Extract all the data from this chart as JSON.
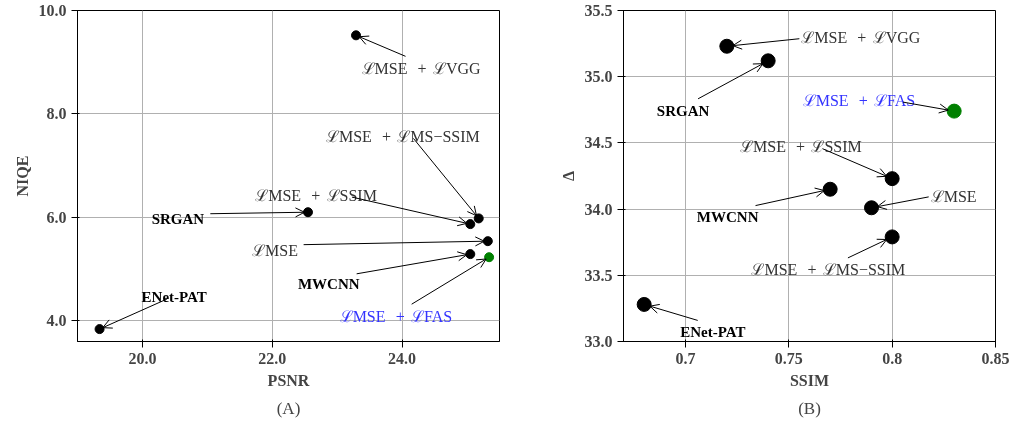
{
  "chart_data": [
    {
      "type": "scatter",
      "title": "(A)",
      "xlabel": "PSNR",
      "ylabel": "NIQE",
      "series": [
        {
          "color": "#000000",
          "x": [
            23.29,
            22.55,
            25.05,
            25.18,
            25.32,
            25.05,
            19.34
          ],
          "values": [
            9.52,
            6.1,
            5.87,
            5.98,
            5.54,
            5.29,
            3.84
          ]
        },
        {
          "color": "#008000",
          "x": [
            25.34
          ],
          "values": [
            5.23
          ]
        }
      ],
      "annotations": [
        {
          "text": "ℒMSE + ℒVGG",
          "x": 23.29,
          "y": 9.52
        },
        {
          "text": "SRGAN",
          "x": 22.55,
          "y": 6.1
        },
        {
          "text": "ℒMSE + ℒSSIM",
          "x": 25.05,
          "y": 5.87
        },
        {
          "text": "ℒMSE + ℒMS−SSIM",
          "x": 25.18,
          "y": 5.98
        },
        {
          "text": "ℒMSE",
          "x": 25.32,
          "y": 5.54
        },
        {
          "text": "MWCNN",
          "x": 25.05,
          "y": 5.29
        },
        {
          "text": "ℒMSE + ℒFAS",
          "x": 25.34,
          "y": 5.23
        },
        {
          "text": "ENet-PAT",
          "x": 19.34,
          "y": 3.84
        }
      ],
      "xlim": [
        19.0,
        25.5
      ],
      "ylim": [
        3.6,
        10.0
      ],
      "xticks": [
        {
          "value": 20,
          "label": "20.0"
        },
        {
          "value": 22,
          "label": "22.0"
        },
        {
          "value": 24,
          "label": "24.0"
        }
      ],
      "yticks": [
        {
          "value": 4,
          "label": "4.0"
        },
        {
          "value": 6,
          "label": "6.0"
        },
        {
          "value": 8,
          "label": "8.0"
        },
        {
          "value": 10,
          "label": "10.0"
        }
      ],
      "grid": true,
      "marker": "circle"
    },
    {
      "type": "scatter",
      "title": "(B)",
      "xlabel": "SSIM",
      "ylabel": "Δ",
      "series": [
        {
          "color": "#000000",
          "x": [
            0.72,
            0.74,
            0.8,
            0.77,
            0.79,
            0.8,
            0.68
          ],
          "values": [
            35.23,
            35.12,
            34.23,
            34.15,
            34.01,
            33.79,
            33.28
          ]
        },
        {
          "color": "#008000",
          "x": [
            0.83
          ],
          "values": [
            34.74
          ]
        }
      ],
      "annotations": [
        {
          "text": "ℒMSE + ℒVGG",
          "x": 0.72,
          "y": 35.23
        },
        {
          "text": "SRGAN",
          "x": 0.74,
          "y": 35.12
        },
        {
          "text": "ℒMSE + ℒFAS",
          "x": 0.83,
          "y": 34.74
        },
        {
          "text": "ℒMSE + ℒSSIM",
          "x": 0.8,
          "y": 34.23
        },
        {
          "text": "MWCNN",
          "x": 0.77,
          "y": 34.15
        },
        {
          "text": "ℒMSE",
          "x": 0.79,
          "y": 34.01
        },
        {
          "text": "ℒMSE + ℒMS−SSIM",
          "x": 0.8,
          "y": 33.79
        },
        {
          "text": "ENet-PAT",
          "x": 0.68,
          "y": 33.28
        }
      ],
      "xlim": [
        0.67,
        0.85
      ],
      "ylim": [
        33.0,
        35.5
      ],
      "xticks": [
        0.7,
        0.75,
        0.8,
        0.85
      ],
      "yticks": [
        {
          "value": 33,
          "label": "33.0"
        },
        {
          "value": 33.5,
          "label": "33.5"
        },
        {
          "value": 34,
          "label": "34.0"
        },
        {
          "value": 34.5,
          "label": "34.5"
        },
        {
          "value": 35,
          "label": "35.0"
        },
        {
          "value": 35.5,
          "label": "35.5"
        }
      ],
      "grid": true,
      "marker": "circle"
    }
  ]
}
